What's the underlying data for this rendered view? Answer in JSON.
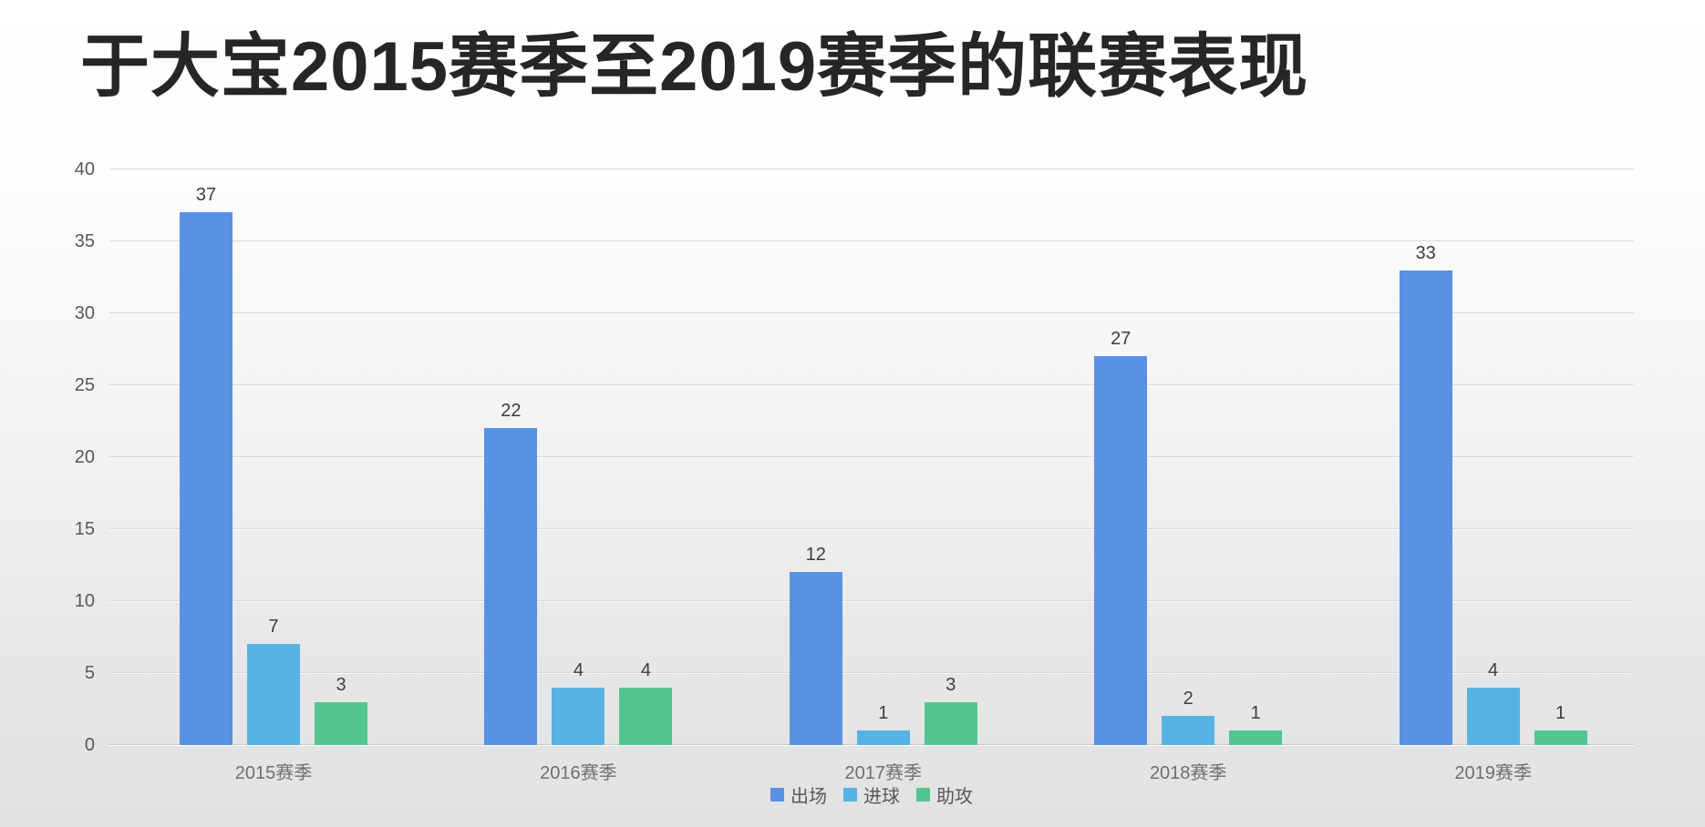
{
  "title": "于大宝2015赛季至2019赛季的联赛表现",
  "chart_data": {
    "type": "bar",
    "title": "于大宝2015赛季至2019赛季的联赛表现",
    "categories": [
      "2015赛季",
      "2016赛季",
      "2017赛季",
      "2018赛季",
      "2019赛季"
    ],
    "series": [
      {
        "name": "出场",
        "color": "#5b91e3",
        "values": [
          37,
          22,
          12,
          27,
          33
        ]
      },
      {
        "name": "进球",
        "color": "#57b3e3",
        "values": [
          7,
          4,
          1,
          2,
          4
        ]
      },
      {
        "name": "助攻",
        "color": "#53c68f",
        "values": [
          3,
          4,
          3,
          1,
          1
        ]
      }
    ],
    "xlabel": "",
    "ylabel": "",
    "ylim": [
      0,
      40
    ],
    "yticks": [
      0,
      5,
      10,
      15,
      20,
      25,
      30,
      35,
      40
    ],
    "grid": true,
    "value_labels": true,
    "legend_position": "bottom",
    "colors": {
      "title_text": "#262626",
      "grid_line": "#d7d7d7",
      "axis_line": "#c9c9c9",
      "ytick_text": "#595959",
      "xtick_text": "#6f6f6f",
      "value_text": "#3d3d3d",
      "legend_text": "#595959",
      "background_top": "#ffffff",
      "background_bottom": "#e2e2e2"
    }
  }
}
